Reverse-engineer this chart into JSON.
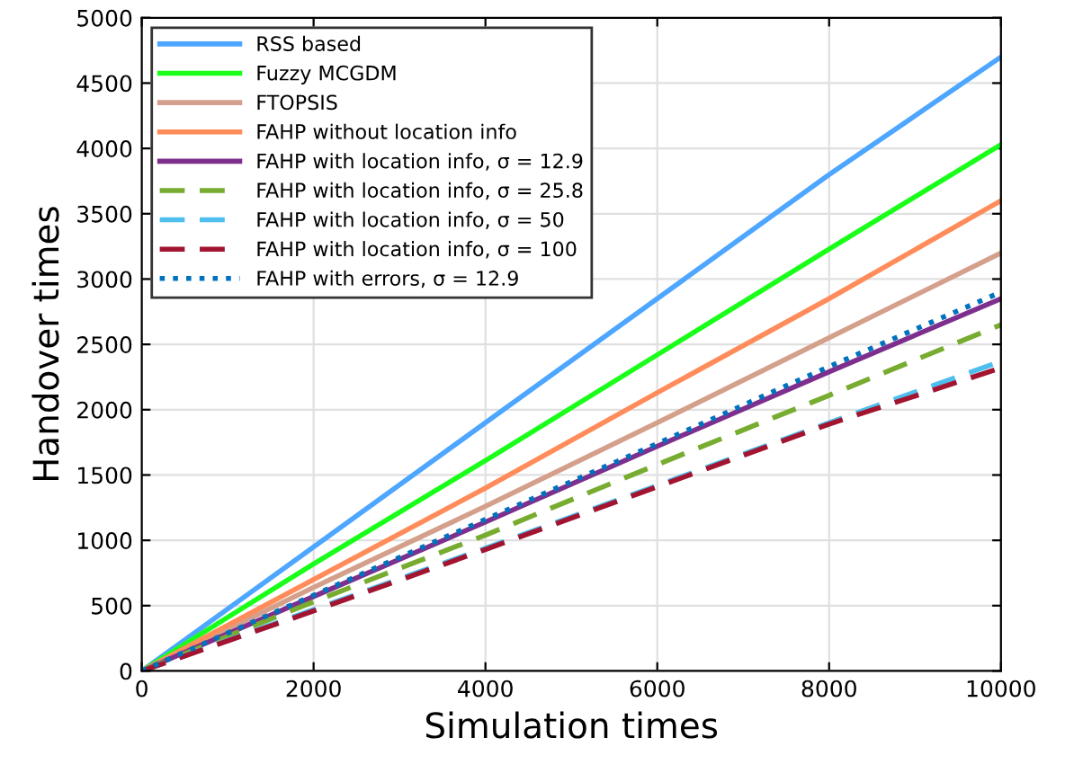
{
  "chart_data": {
    "type": "line",
    "xlabel": "Simulation times",
    "ylabel": "Handover times",
    "x": [
      0,
      2000,
      4000,
      6000,
      8000,
      10000
    ],
    "xlim": [
      0,
      10000
    ],
    "xticks": [
      0,
      2000,
      4000,
      6000,
      8000,
      10000
    ],
    "ylim": [
      0,
      5000
    ],
    "yticks": [
      0,
      500,
      1000,
      1500,
      2000,
      2500,
      3000,
      3500,
      4000,
      4500,
      5000
    ],
    "grid": true,
    "legend": "top left",
    "series": [
      {
        "name": "RSS based",
        "color": "#4da6ff",
        "line_style": "solid",
        "values": [
          0,
          950,
          1900,
          2850,
          3800,
          4700
        ]
      },
      {
        "name": "Fuzzy MCGDM",
        "color": "#1aff1a",
        "line_style": "solid",
        "values": [
          0,
          820,
          1610,
          2420,
          3230,
          4030
        ]
      },
      {
        "name": "FTOPSIS",
        "color": "#d4a08c",
        "line_style": "solid",
        "values": [
          0,
          640,
          1260,
          1900,
          2550,
          3200
        ]
      },
      {
        "name": "FAHP without location info",
        "color": "#ff8c5a",
        "line_style": "solid",
        "values": [
          0,
          700,
          1400,
          2130,
          2850,
          3600
        ]
      },
      {
        "name": "FAHP with location info, σ = 12.9",
        "color": "#7e2f8e",
        "line_style": "solid",
        "values": [
          0,
          570,
          1140,
          1720,
          2290,
          2850
        ]
      },
      {
        "name": "FAHP with location info, σ = 25.8",
        "color": "#77ac30",
        "line_style": "dashed",
        "values": [
          0,
          530,
          1040,
          1580,
          2110,
          2650
        ]
      },
      {
        "name": "FAHP with location info, σ = 50",
        "color": "#4dbeee",
        "line_style": "dashed",
        "values": [
          0,
          470,
          940,
          1420,
          1900,
          2370
        ]
      },
      {
        "name": "FAHP with location info, σ = 100",
        "color": "#a2142f",
        "line_style": "dashed",
        "values": [
          0,
          460,
          930,
          1410,
          1890,
          2320
        ]
      },
      {
        "name": "FAHP with errors, σ = 12.9",
        "color": "#0072bd",
        "line_style": "dotted",
        "values": [
          0,
          580,
          1160,
          1740,
          2330,
          2900
        ]
      }
    ]
  }
}
